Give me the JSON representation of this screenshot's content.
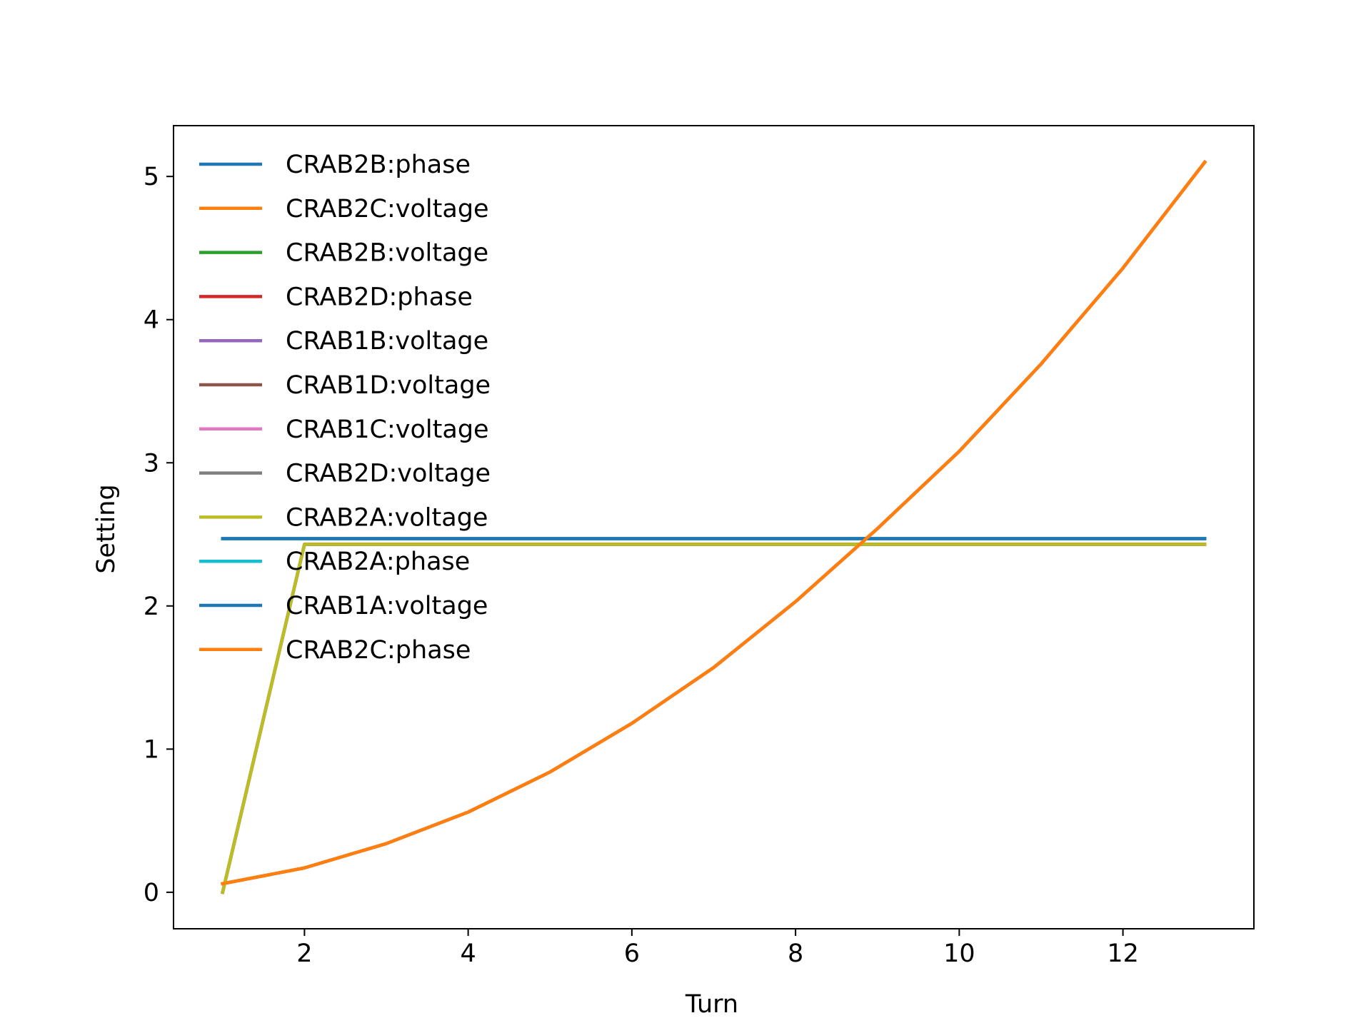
{
  "chart_data": {
    "type": "line",
    "title": "",
    "xlabel": "Turn",
    "ylabel": "Setting",
    "xlim": [
      0.4,
      13.6
    ],
    "ylim": [
      -0.255,
      5.355
    ],
    "x_ticks": [
      2,
      4,
      6,
      8,
      10,
      12
    ],
    "y_ticks": [
      0,
      1,
      2,
      3,
      4,
      5
    ],
    "x_tick_labels": [
      "2",
      "4",
      "6",
      "8",
      "10",
      "12"
    ],
    "y_tick_labels": [
      "0",
      "1",
      "2",
      "3",
      "4",
      "5"
    ],
    "grid": false,
    "legend_position": "upper-left",
    "x": [
      1,
      2,
      3,
      4,
      5,
      6,
      7,
      8,
      9,
      10,
      11,
      12,
      13
    ],
    "series": [
      {
        "name": "CRAB2B:phase",
        "color": "#1f77b4",
        "values": [
          2.47,
          2.47,
          2.47,
          2.47,
          2.47,
          2.47,
          2.47,
          2.47,
          2.47,
          2.47,
          2.47,
          2.47,
          2.47
        ]
      },
      {
        "name": "CRAB2C:voltage",
        "color": "#ff7f0e",
        "values": [
          0.06,
          0.17,
          0.34,
          0.56,
          0.84,
          1.18,
          1.57,
          2.03,
          2.54,
          3.08,
          3.69,
          4.36,
          5.1
        ]
      },
      {
        "name": "CRAB2B:voltage",
        "color": "#2ca02c",
        "values": [
          0.0,
          2.43,
          2.43,
          2.43,
          2.43,
          2.43,
          2.43,
          2.43,
          2.43,
          2.43,
          2.43,
          2.43,
          2.43
        ]
      },
      {
        "name": "CRAB2D:phase",
        "color": "#d62728",
        "values": [
          0.06,
          0.17,
          0.34,
          0.56,
          0.84,
          1.18,
          1.57,
          2.03,
          2.54,
          3.08,
          3.69,
          4.36,
          5.1
        ]
      },
      {
        "name": "CRAB1B:voltage",
        "color": "#9467bd",
        "values": [
          0.0,
          2.43,
          2.43,
          2.43,
          2.43,
          2.43,
          2.43,
          2.43,
          2.43,
          2.43,
          2.43,
          2.43,
          2.43
        ]
      },
      {
        "name": "CRAB1D:voltage",
        "color": "#8c564b",
        "values": [
          0.0,
          2.43,
          2.43,
          2.43,
          2.43,
          2.43,
          2.43,
          2.43,
          2.43,
          2.43,
          2.43,
          2.43,
          2.43
        ]
      },
      {
        "name": "CRAB1C:voltage",
        "color": "#e377c2",
        "values": [
          0.0,
          2.43,
          2.43,
          2.43,
          2.43,
          2.43,
          2.43,
          2.43,
          2.43,
          2.43,
          2.43,
          2.43,
          2.43
        ]
      },
      {
        "name": "CRAB2D:voltage",
        "color": "#7f7f7f",
        "values": [
          0.0,
          2.43,
          2.43,
          2.43,
          2.43,
          2.43,
          2.43,
          2.43,
          2.43,
          2.43,
          2.43,
          2.43,
          2.43
        ]
      },
      {
        "name": "CRAB2A:voltage",
        "color": "#bcbd22",
        "values": [
          0.0,
          2.43,
          2.43,
          2.43,
          2.43,
          2.43,
          2.43,
          2.43,
          2.43,
          2.43,
          2.43,
          2.43,
          2.43
        ]
      },
      {
        "name": "CRAB2A:phase",
        "color": "#17becf",
        "values": [
          2.47,
          2.47,
          2.47,
          2.47,
          2.47,
          2.47,
          2.47,
          2.47,
          2.47,
          2.47,
          2.47,
          2.47,
          2.47
        ]
      },
      {
        "name": "CRAB1A:voltage",
        "color": "#1f77b4",
        "values": [
          2.47,
          2.47,
          2.47,
          2.47,
          2.47,
          2.47,
          2.47,
          2.47,
          2.47,
          2.47,
          2.47,
          2.47,
          2.47
        ]
      },
      {
        "name": "CRAB2C:phase",
        "color": "#ff7f0e",
        "values": [
          0.06,
          0.17,
          0.34,
          0.56,
          0.84,
          1.18,
          1.57,
          2.03,
          2.54,
          3.08,
          3.69,
          4.36,
          5.1
        ]
      }
    ]
  }
}
